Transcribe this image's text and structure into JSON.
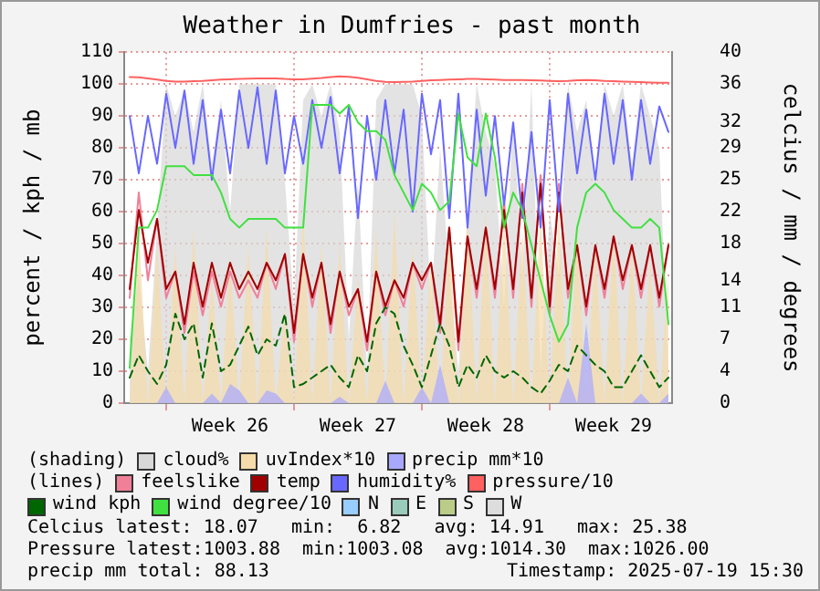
{
  "chart_data": {
    "type": "line",
    "title": "Weather in Dumfries - past month",
    "ylabel": "percent / kph / mb",
    "y2label": "celcius / mm / degrees",
    "x": [
      "2025-06-21T00:00",
      "2025-06-21T12:00",
      "2025-06-22T00:00",
      "2025-06-22T12:00",
      "2025-06-23T00:00",
      "2025-06-23T12:00",
      "2025-06-24T00:00",
      "2025-06-24T12:00",
      "2025-06-25T00:00",
      "2025-06-25T12:00",
      "2025-06-26T00:00",
      "2025-06-26T12:00",
      "2025-06-27T00:00",
      "2025-06-27T12:00",
      "2025-06-28T00:00",
      "2025-06-28T12:00",
      "2025-06-29T00:00",
      "2025-06-29T12:00",
      "2025-06-30T00:00",
      "2025-06-30T12:00",
      "2025-07-01T00:00",
      "2025-07-01T12:00",
      "2025-07-02T00:00",
      "2025-07-02T12:00",
      "2025-07-03T00:00",
      "2025-07-03T12:00",
      "2025-07-04T00:00",
      "2025-07-04T12:00",
      "2025-07-05T00:00",
      "2025-07-05T12:00",
      "2025-07-06T00:00",
      "2025-07-06T12:00",
      "2025-07-07T00:00",
      "2025-07-07T12:00",
      "2025-07-08T00:00",
      "2025-07-08T12:00",
      "2025-07-09T00:00",
      "2025-07-09T12:00",
      "2025-07-10T00:00",
      "2025-07-10T12:00",
      "2025-07-11T00:00",
      "2025-07-11T12:00",
      "2025-07-12T00:00",
      "2025-07-12T12:00",
      "2025-07-13T00:00",
      "2025-07-13T12:00",
      "2025-07-14T00:00",
      "2025-07-14T12:00",
      "2025-07-15T00:00",
      "2025-07-15T12:00",
      "2025-07-16T00:00",
      "2025-07-16T12:00",
      "2025-07-17T00:00",
      "2025-07-17T12:00",
      "2025-07-18T00:00",
      "2025-07-18T12:00",
      "2025-07-19T00:00",
      "2025-07-19T12:00",
      "2025-07-20T00:00",
      "2025-07-20T12:00"
    ],
    "xlim": [
      "2025-06-20T16:48",
      "2025-07-20T16:48"
    ],
    "xticks": [
      {
        "value": "2025-06-23",
        "label": null
      },
      {
        "value": "2025-06-26T12:00",
        "label": "Week 26"
      },
      {
        "value": "2025-06-30",
        "label": null
      },
      {
        "value": "2025-07-03T12:00",
        "label": "Week 27"
      },
      {
        "value": "2025-07-07",
        "label": null
      },
      {
        "value": "2025-07-10T12:00",
        "label": "Week 28"
      },
      {
        "value": "2025-07-14",
        "label": null
      },
      {
        "value": "2025-07-17T12:00",
        "label": "Week 29"
      }
    ],
    "ylim": [
      0,
      110
    ],
    "yticks": [
      0,
      10,
      20,
      30,
      40,
      50,
      60,
      70,
      80,
      90,
      100,
      110
    ],
    "y2lim": [
      0,
      40
    ],
    "y2ticks": [
      0,
      {
        "value": 3.636,
        "label": "4"
      },
      {
        "value": 7.273,
        "label": "7"
      },
      {
        "value": 10.909,
        "label": "11"
      },
      14,
      {
        "value": 18.182,
        "label": "18"
      },
      {
        "value": 21.818,
        "label": "22"
      },
      {
        "value": 25.455,
        "label": "25"
      },
      {
        "value": 29.091,
        "label": "29"
      },
      32,
      {
        "value": 36.364,
        "label": "36"
      },
      40
    ],
    "grid": true,
    "legend": "bottom",
    "marker": "none",
    "series": [
      {
        "name": "cloud%",
        "type": "area",
        "color": "#d8d8d8",
        "values": [
          20,
          40,
          10,
          55,
          100,
          90,
          98,
          85,
          100,
          75,
          95,
          60,
          100,
          100,
          100,
          100,
          100,
          70,
          30,
          95,
          100,
          90,
          100,
          85,
          20,
          70,
          10,
          95,
          100,
          100,
          100,
          100,
          90,
          30,
          80,
          40,
          10,
          60,
          100,
          85,
          75,
          30,
          90,
          40,
          100,
          10,
          60,
          40,
          100,
          85,
          95,
          70,
          100,
          90,
          100,
          75,
          100,
          90,
          80,
          10
        ]
      },
      {
        "name": "uvIndex*10",
        "type": "area",
        "color": "#f5dcaa",
        "values": [
          0,
          55,
          0,
          50,
          0,
          50,
          0,
          55,
          0,
          40,
          0,
          45,
          0,
          50,
          0,
          55,
          0,
          30,
          0,
          60,
          0,
          50,
          0,
          50,
          0,
          40,
          0,
          55,
          0,
          60,
          0,
          50,
          0,
          45,
          0,
          55,
          0,
          60,
          0,
          60,
          0,
          60,
          0,
          55,
          0,
          60,
          0,
          60,
          0,
          55,
          0,
          50,
          0,
          55,
          0,
          50,
          0,
          45,
          0,
          40
        ]
      },
      {
        "name": "precip mm*10",
        "type": "area",
        "color": "#a8a8ff",
        "values": [
          0,
          0,
          0,
          0,
          5,
          0,
          0,
          0,
          0,
          3,
          0,
          6,
          4,
          0,
          0,
          4,
          3,
          0,
          0,
          0,
          0,
          0,
          0,
          2,
          0,
          0,
          0,
          0,
          7,
          0,
          0,
          0,
          5,
          0,
          12,
          0,
          0,
          0,
          0,
          0,
          0,
          0,
          0,
          0,
          0,
          0,
          0,
          0,
          8,
          0,
          25,
          0,
          0,
          0,
          0,
          0,
          3,
          0,
          0,
          3
        ]
      },
      {
        "name": "feelslike",
        "color": "#f08098",
        "axis": "y2",
        "values": [
          12,
          24,
          14,
          21,
          12,
          15,
          8,
          15,
          10,
          15,
          11,
          15,
          12,
          14,
          12,
          16,
          13,
          17,
          7,
          17,
          11,
          16,
          8,
          15,
          10,
          13,
          6,
          15,
          10,
          14,
          11,
          16,
          13,
          16,
          8,
          20,
          6,
          19,
          12,
          20,
          12,
          23,
          12,
          25,
          11,
          26,
          10,
          25,
          12,
          18,
          10,
          18,
          12,
          19,
          13,
          18,
          12,
          18,
          11,
          18
        ]
      },
      {
        "name": "temp",
        "color": "#a00000",
        "axis": "y2",
        "values": [
          13,
          22,
          16,
          21,
          13,
          15,
          9,
          16,
          11,
          16,
          12,
          16,
          13,
          15,
          13,
          16,
          14,
          17,
          8,
          17,
          12,
          16,
          9,
          15,
          11,
          13,
          7,
          15,
          11,
          14,
          12,
          16,
          14,
          16,
          9,
          20,
          7,
          19,
          13,
          20,
          13,
          22,
          13,
          24,
          12,
          25,
          11,
          24,
          13,
          18,
          11,
          18,
          13,
          19,
          14,
          18,
          13,
          18,
          12,
          18
        ]
      },
      {
        "name": "humidity%",
        "color": "#6868ff",
        "values": [
          90,
          72,
          90,
          75,
          97,
          80,
          98,
          75,
          95,
          70,
          92,
          72,
          98,
          80,
          99,
          75,
          98,
          72,
          90,
          75,
          95,
          80,
          96,
          72,
          93,
          58,
          90,
          70,
          95,
          72,
          92,
          60,
          97,
          78,
          95,
          58,
          97,
          55,
          92,
          65,
          90,
          62,
          88,
          58,
          85,
          55,
          95,
          60,
          97,
          72,
          92,
          70,
          97,
          75,
          95,
          70,
          95,
          75,
          93,
          85
        ]
      },
      {
        "name": "pressure/10",
        "color": "#ff6060",
        "values": [
          102.2,
          102.1,
          101.8,
          101.4,
          101.0,
          100.8,
          100.8,
          100.9,
          101.0,
          101.2,
          101.4,
          101.5,
          101.6,
          101.7,
          101.8,
          101.8,
          101.8,
          101.6,
          101.5,
          101.5,
          101.7,
          101.9,
          102.2,
          102.4,
          102.3,
          102.0,
          101.5,
          101.0,
          100.7,
          100.6,
          100.7,
          100.8,
          101.0,
          101.2,
          101.3,
          101.4,
          101.5,
          101.6,
          101.6,
          101.5,
          101.4,
          101.3,
          101.3,
          101.3,
          101.2,
          101.1,
          101.0,
          100.9,
          101.0,
          101.2,
          101.3,
          101.2,
          101.0,
          100.9,
          100.8,
          100.7,
          100.6,
          100.5,
          100.4,
          100.4
        ]
      },
      {
        "name": "wind kph",
        "color": "#006600",
        "line_style": "dashed",
        "values": [
          8,
          15,
          10,
          6,
          12,
          28,
          20,
          25,
          8,
          25,
          10,
          12,
          18,
          24,
          15,
          20,
          18,
          28,
          5,
          6,
          8,
          10,
          12,
          8,
          5,
          15,
          10,
          25,
          30,
          28,
          18,
          12,
          5,
          15,
          25,
          18,
          5,
          12,
          8,
          15,
          10,
          8,
          10,
          8,
          5,
          3,
          7,
          12,
          10,
          18,
          15,
          12,
          10,
          5,
          5,
          10,
          15,
          10,
          5,
          8
        ]
      },
      {
        "name": "wind degree/10",
        "color": "#40e040",
        "axis": "y2",
        "values": [
          4,
          20,
          20,
          22,
          27,
          27,
          27,
          26,
          26,
          26,
          24,
          21,
          20,
          21,
          21,
          21,
          21,
          20,
          20,
          20,
          34,
          34,
          34,
          33,
          34,
          32,
          31,
          31,
          30,
          26,
          24,
          22,
          25,
          24,
          22,
          23,
          33,
          28,
          27,
          33,
          28,
          20,
          24,
          22,
          18,
          14,
          10,
          7,
          9,
          20,
          24,
          25,
          24,
          22,
          21,
          20,
          20,
          21,
          20,
          9
        ]
      },
      {
        "name": "N",
        "color": "#99ccff",
        "axis": "y2",
        "values": [
          null,
          null,
          null,
          null,
          null,
          null,
          null,
          null,
          null,
          null,
          null,
          null,
          null,
          null,
          null,
          null,
          null,
          null,
          null,
          null,
          null,
          null,
          null,
          null,
          null,
          null,
          null,
          null,
          null,
          null,
          null,
          null,
          null,
          null,
          null,
          null,
          null,
          null,
          null,
          null,
          null,
          null,
          null,
          null,
          null,
          null,
          null,
          null,
          null,
          null,
          null,
          null,
          null,
          null,
          null,
          null,
          null,
          null,
          null,
          null
        ]
      },
      {
        "name": "E",
        "color": "#99ccbb",
        "axis": "y2",
        "values": [
          null,
          null,
          null,
          null,
          null,
          null,
          null,
          null,
          null,
          null,
          null,
          null,
          null,
          null,
          null,
          null,
          null,
          null,
          null,
          null,
          null,
          null,
          null,
          null,
          null,
          null,
          null,
          null,
          null,
          null,
          null,
          null,
          null,
          null,
          null,
          null,
          null,
          null,
          null,
          null,
          null,
          null,
          null,
          null,
          null,
          null,
          null,
          null,
          null,
          null,
          null,
          null,
          null,
          null,
          null,
          null,
          null,
          null,
          null,
          null
        ]
      },
      {
        "name": "S",
        "color": "#bbcc88",
        "axis": "y2",
        "values": [
          null,
          null,
          null,
          null,
          null,
          null,
          null,
          null,
          null,
          null,
          null,
          null,
          null,
          null,
          null,
          null,
          null,
          null,
          null,
          null,
          null,
          null,
          null,
          null,
          null,
          null,
          null,
          null,
          null,
          null,
          null,
          null,
          null,
          null,
          null,
          null,
          null,
          null,
          null,
          null,
          null,
          null,
          null,
          null,
          null,
          null,
          null,
          null,
          null,
          null,
          null,
          null,
          null,
          null,
          null,
          null,
          null,
          null,
          null,
          null
        ]
      },
      {
        "name": "W",
        "color": "#dddddd",
        "axis": "y2",
        "values": [
          null,
          null,
          null,
          null,
          null,
          null,
          null,
          null,
          null,
          null,
          null,
          null,
          null,
          null,
          null,
          null,
          null,
          null,
          null,
          null,
          null,
          null,
          null,
          null,
          null,
          null,
          null,
          null,
          null,
          null,
          null,
          null,
          null,
          null,
          null,
          null,
          null,
          null,
          null,
          null,
          null,
          null,
          null,
          null,
          null,
          null,
          null,
          null,
          null,
          null,
          null,
          null,
          null,
          null,
          null,
          null,
          null,
          null,
          null,
          null
        ]
      }
    ],
    "annotations": [
      "(shading)",
      "(lines)",
      "Celcius latest: 18.07   min:  6.82   avg: 14.91   max: 25.38",
      "Pressure latest:1003.88  min:1003.08  avg:1014.30  max:1026.00",
      "precip mm total: 88.13",
      "Timestamp: 2025-07-19 15:30"
    ]
  }
}
